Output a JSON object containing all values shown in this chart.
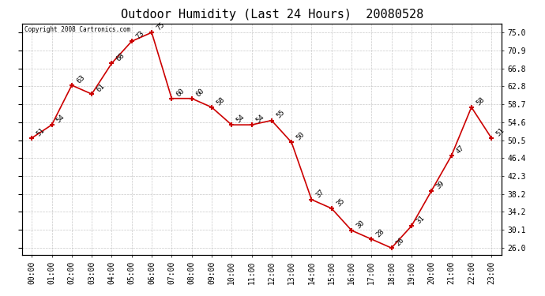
{
  "title": "Outdoor Humidity (Last 24 Hours)  20080528",
  "copyright_text": "Copyright 2008 Cartronics.com",
  "x_labels": [
    "00:00",
    "01:00",
    "02:00",
    "03:00",
    "04:00",
    "05:00",
    "06:00",
    "07:00",
    "08:00",
    "09:00",
    "10:00",
    "11:00",
    "12:00",
    "13:00",
    "14:00",
    "15:00",
    "16:00",
    "17:00",
    "18:00",
    "19:00",
    "20:00",
    "21:00",
    "22:00",
    "23:00"
  ],
  "y_values": [
    51,
    54,
    63,
    61,
    68,
    73,
    75,
    60,
    60,
    58,
    54,
    54,
    55,
    50,
    37,
    35,
    30,
    28,
    26,
    31,
    39,
    47,
    58,
    51
  ],
  "y_ticks": [
    26.0,
    30.1,
    34.2,
    38.2,
    42.3,
    46.4,
    50.5,
    54.6,
    58.7,
    62.8,
    66.8,
    70.9,
    75.0
  ],
  "line_color": "#cc0000",
  "marker_color": "#cc0000",
  "bg_color": "#ffffff",
  "grid_color": "#bbbbbb",
  "title_fontsize": 11,
  "label_fontsize": 7,
  "annotation_fontsize": 6.5,
  "ylim_min": 24.5,
  "ylim_max": 77.0
}
